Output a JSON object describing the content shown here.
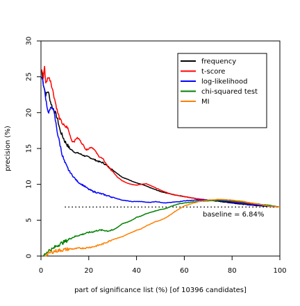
{
  "chart_data": {
    "type": "line",
    "xlabel": "part of significance list (%) [of 10396 candidates]",
    "ylabel": "precision (%)",
    "xlim": [
      0,
      100
    ],
    "ylim": [
      0,
      30
    ],
    "x_ticks": [
      0,
      20,
      40,
      60,
      80,
      100
    ],
    "y_ticks": [
      0,
      5,
      10,
      15,
      20,
      25,
      30
    ],
    "grid": false,
    "legend_position": "top-right",
    "baseline": {
      "value": 6.84,
      "label": "baseline = 6.84%"
    },
    "series": [
      {
        "name": "frequency",
        "color": "#000000",
        "points": [
          [
            0.3,
            26
          ],
          [
            1,
            24
          ],
          [
            2,
            22.5
          ],
          [
            3,
            23
          ],
          [
            4,
            21.5
          ],
          [
            5,
            20.5
          ],
          [
            6,
            20
          ],
          [
            7,
            19
          ],
          [
            8,
            17.5
          ],
          [
            10,
            16
          ],
          [
            12,
            15
          ],
          [
            14,
            14.5
          ],
          [
            16,
            14.3
          ],
          [
            18,
            14
          ],
          [
            20,
            13.8
          ],
          [
            22,
            13.5
          ],
          [
            24,
            13.2
          ],
          [
            26,
            13
          ],
          [
            28,
            12.5
          ],
          [
            30,
            12
          ],
          [
            32,
            11.5
          ],
          [
            34,
            11
          ],
          [
            37,
            10.6
          ],
          [
            40,
            10.2
          ],
          [
            43,
            9.9
          ],
          [
            46,
            9.5
          ],
          [
            50,
            9
          ],
          [
            55,
            8.6
          ],
          [
            60,
            8.3
          ],
          [
            65,
            8
          ],
          [
            70,
            7.8
          ],
          [
            75,
            7.6
          ],
          [
            80,
            7.4
          ],
          [
            85,
            7.2
          ],
          [
            90,
            7.05
          ],
          [
            95,
            6.95
          ],
          [
            100,
            6.84
          ]
        ]
      },
      {
        "name": "t-score",
        "color": "#ff0000",
        "points": [
          [
            0.3,
            26
          ],
          [
            1,
            25
          ],
          [
            1.5,
            26.5
          ],
          [
            2,
            24
          ],
          [
            3,
            25
          ],
          [
            4,
            24.5
          ],
          [
            5,
            23
          ],
          [
            6,
            21.5
          ],
          [
            7,
            20
          ],
          [
            8,
            19
          ],
          [
            9,
            18.5
          ],
          [
            10,
            18
          ],
          [
            11,
            18
          ],
          [
            12,
            17
          ],
          [
            13,
            16
          ],
          [
            14,
            16
          ],
          [
            15,
            16.5
          ],
          [
            16,
            16.3
          ],
          [
            17,
            15.8
          ],
          [
            18,
            15.3
          ],
          [
            19,
            14.8
          ],
          [
            20,
            15
          ],
          [
            21,
            15.2
          ],
          [
            22,
            15
          ],
          [
            23,
            14.5
          ],
          [
            24,
            14
          ],
          [
            26,
            13.5
          ],
          [
            28,
            12.5
          ],
          [
            30,
            11.8
          ],
          [
            32,
            11
          ],
          [
            34,
            10.5
          ],
          [
            36,
            10.2
          ],
          [
            38,
            10
          ],
          [
            40,
            9.9
          ],
          [
            42,
            10
          ],
          [
            44,
            10.1
          ],
          [
            46,
            9.8
          ],
          [
            48,
            9.5
          ],
          [
            50,
            9.2
          ],
          [
            53,
            8.8
          ],
          [
            56,
            8.5
          ],
          [
            60,
            8.3
          ],
          [
            65,
            8
          ],
          [
            70,
            7.8
          ],
          [
            75,
            7.7
          ],
          [
            80,
            7.6
          ],
          [
            85,
            7.4
          ],
          [
            90,
            7.2
          ],
          [
            95,
            7
          ],
          [
            100,
            6.84
          ]
        ]
      },
      {
        "name": "log-likelihood",
        "color": "#0000ff",
        "points": [
          [
            0.3,
            25
          ],
          [
            1,
            24
          ],
          [
            2,
            22
          ],
          [
            3,
            20
          ],
          [
            4,
            20.5
          ],
          [
            5,
            20.8
          ],
          [
            6,
            19
          ],
          [
            7,
            17
          ],
          [
            8,
            15.5
          ],
          [
            9,
            14
          ],
          [
            10,
            13
          ],
          [
            11,
            12.3
          ],
          [
            12,
            11.8
          ],
          [
            13,
            11.3
          ],
          [
            14,
            10.9
          ],
          [
            15,
            10.5
          ],
          [
            16,
            10.2
          ],
          [
            18,
            9.8
          ],
          [
            20,
            9.3
          ],
          [
            22,
            9
          ],
          [
            24,
            8.8
          ],
          [
            26,
            8.6
          ],
          [
            28,
            8.4
          ],
          [
            30,
            8.2
          ],
          [
            32,
            8
          ],
          [
            34,
            7.8
          ],
          [
            36,
            7.7
          ],
          [
            38,
            7.6
          ],
          [
            40,
            7.6
          ],
          [
            42,
            7.6
          ],
          [
            44,
            7.5
          ],
          [
            46,
            7.5
          ],
          [
            48,
            7.6
          ],
          [
            50,
            7.5
          ],
          [
            52,
            7.4
          ],
          [
            55,
            7.5
          ],
          [
            58,
            7.6
          ],
          [
            60,
            7.7
          ],
          [
            65,
            7.8
          ],
          [
            70,
            7.8
          ],
          [
            75,
            7.7
          ],
          [
            80,
            7.5
          ],
          [
            85,
            7.3
          ],
          [
            90,
            7.1
          ],
          [
            95,
            7
          ],
          [
            100,
            6.84
          ]
        ]
      },
      {
        "name": "chi-squared test",
        "color": "#008000",
        "points": [
          [
            1,
            0
          ],
          [
            2,
            0.4
          ],
          [
            3,
            0.7
          ],
          [
            4,
            0.9
          ],
          [
            5,
            1
          ],
          [
            6,
            1.3
          ],
          [
            8,
            1.7
          ],
          [
            10,
            2
          ],
          [
            12,
            2.4
          ],
          [
            14,
            2.7
          ],
          [
            16,
            2.9
          ],
          [
            18,
            3.1
          ],
          [
            20,
            3.3
          ],
          [
            22,
            3.4
          ],
          [
            24,
            3.6
          ],
          [
            26,
            3.6
          ],
          [
            28,
            3.5
          ],
          [
            30,
            3.6
          ],
          [
            32,
            4
          ],
          [
            34,
            4.5
          ],
          [
            36,
            4.7
          ],
          [
            38,
            5
          ],
          [
            40,
            5.4
          ],
          [
            42,
            5.6
          ],
          [
            44,
            5.9
          ],
          [
            46,
            6.1
          ],
          [
            48,
            6.3
          ],
          [
            50,
            6.5
          ],
          [
            52,
            6.6
          ],
          [
            55,
            7
          ],
          [
            58,
            7.3
          ],
          [
            60,
            7.4
          ],
          [
            65,
            7.6
          ],
          [
            70,
            7.7
          ],
          [
            75,
            7.8
          ],
          [
            80,
            7.7
          ],
          [
            85,
            7.5
          ],
          [
            90,
            7.3
          ],
          [
            95,
            7.1
          ],
          [
            100,
            6.84
          ]
        ]
      },
      {
        "name": "MI",
        "color": "#ff7f00",
        "points": [
          [
            1.5,
            0
          ],
          [
            2,
            0.1
          ],
          [
            3,
            0.3
          ],
          [
            4,
            0.5
          ],
          [
            5,
            0.6
          ],
          [
            6,
            0.7
          ],
          [
            8,
            0.8
          ],
          [
            10,
            0.9
          ],
          [
            12,
            1
          ],
          [
            14,
            1
          ],
          [
            16,
            1.1
          ],
          [
            18,
            1.1
          ],
          [
            20,
            1.2
          ],
          [
            22,
            1.3
          ],
          [
            24,
            1.5
          ],
          [
            26,
            1.7
          ],
          [
            28,
            2
          ],
          [
            30,
            2.3
          ],
          [
            32,
            2.5
          ],
          [
            34,
            2.7
          ],
          [
            36,
            3
          ],
          [
            38,
            3.3
          ],
          [
            40,
            3.6
          ],
          [
            42,
            3.8
          ],
          [
            44,
            4.2
          ],
          [
            46,
            4.5
          ],
          [
            48,
            4.8
          ],
          [
            50,
            5
          ],
          [
            52,
            5.3
          ],
          [
            54,
            5.7
          ],
          [
            56,
            6.2
          ],
          [
            58,
            6.6
          ],
          [
            60,
            7
          ],
          [
            63,
            7.3
          ],
          [
            66,
            7.6
          ],
          [
            70,
            7.8
          ],
          [
            75,
            7.9
          ],
          [
            80,
            7.8
          ],
          [
            85,
            7.6
          ],
          [
            90,
            7.3
          ],
          [
            95,
            7
          ],
          [
            100,
            6.84
          ]
        ]
      }
    ]
  }
}
